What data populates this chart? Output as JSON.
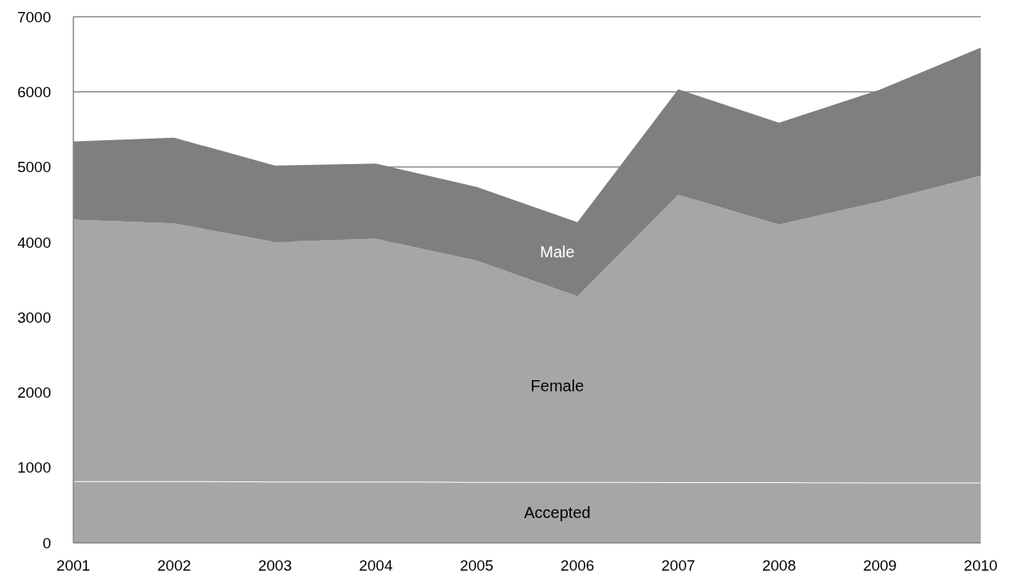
{
  "chart_data": {
    "type": "area",
    "stacked": true,
    "categories": [
      "2001",
      "2002",
      "2003",
      "2004",
      "2005",
      "2006",
      "2007",
      "2008",
      "2009",
      "2010"
    ],
    "series": [
      {
        "name": "Accepted",
        "color": "#a6a6a6",
        "values": [
          820,
          820,
          815,
          815,
          810,
          810,
          805,
          805,
          800,
          800
        ]
      },
      {
        "name": "Female",
        "color": "#a6a6a6",
        "values": [
          3480,
          3430,
          3185,
          3230,
          2945,
          2470,
          3825,
          3430,
          3740,
          4085
        ]
      },
      {
        "name": "Male",
        "color": "#7f7f7d",
        "values": [
          1040,
          1140,
          1020,
          1000,
          980,
          985,
          1405,
          1355,
          1490,
          1705
        ]
      }
    ],
    "ylim": [
      0,
      7000
    ],
    "yticks": [
      0,
      1000,
      2000,
      3000,
      4000,
      5000,
      6000,
      7000
    ],
    "grid": "y"
  }
}
